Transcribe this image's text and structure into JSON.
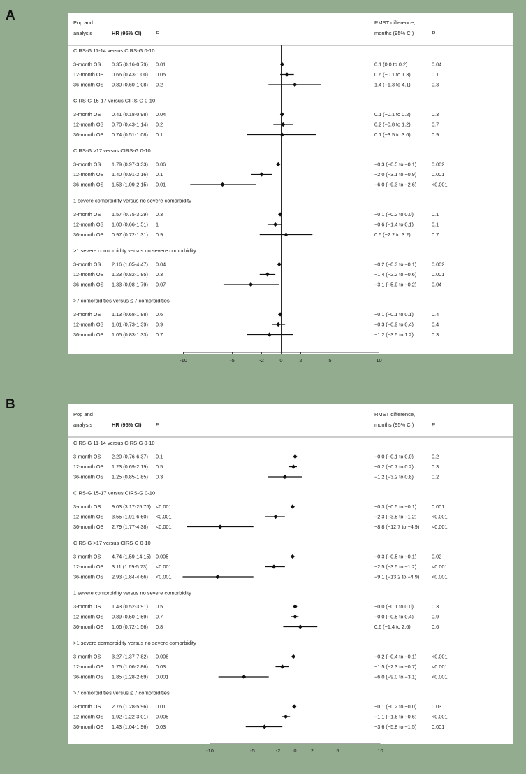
{
  "panels": [
    {
      "letter": "A",
      "header": {
        "pop_line1": "Pop and",
        "pop_line2": "analysis",
        "hr_label": "HR (95% CI)",
        "p_label": "P",
        "rmst_line1": "RMST difference,",
        "rmst_line2": "months (95% CI)",
        "p2_label": "P"
      },
      "groups": [
        {
          "title": "CIRS-G 11-14 versus CIRS-G  0-10",
          "rows": [
            {
              "label": "3-month OS",
              "hr": "0.35 (0.16-0.79)",
              "p": "0.01",
              "est": 0.1,
              "lo": 0.0,
              "hi": 0.2,
              "rmst": "0.1 (0.0 to 0.2)",
              "p2": "0.04"
            },
            {
              "label": "12-month OS",
              "hr": "0.66 (0.43-1.00)",
              "p": "0.05",
              "est": 0.6,
              "lo": -0.1,
              "hi": 1.3,
              "rmst": "0.6 (−0.1 to 1.3)",
              "p2": "0.1"
            },
            {
              "label": "36-month OS",
              "hr": "0.80 (0.60-1.08)",
              "p": "0.2",
              "est": 1.4,
              "lo": -1.3,
              "hi": 4.1,
              "rmst": "1.4 (−1.3 to 4.1)",
              "p2": "0.3"
            }
          ]
        },
        {
          "title": "CIRS-G 15-17 versus CIRS-G  0-10",
          "rows": [
            {
              "label": "3-month OS",
              "hr": "0.41 (0.18-0.98)",
              "p": "0.04",
              "est": 0.1,
              "lo": -0.1,
              "hi": 0.2,
              "rmst": "0.1 (−0.1 to 0.2)",
              "p2": "0.3"
            },
            {
              "label": "12-month OS",
              "hr": "0.70 (0.43-1.14)",
              "p": "0.2",
              "est": 0.2,
              "lo": -0.8,
              "hi": 1.2,
              "rmst": "0.2 (−0.8 to 1.2)",
              "p2": "0.7"
            },
            {
              "label": "36-month OS",
              "hr": "0.74 (0.51-1.08)",
              "p": "0.1",
              "est": 0.1,
              "lo": -3.5,
              "hi": 3.6,
              "rmst": "0.1 (−3.5 to 3.6)",
              "p2": "0.9"
            }
          ]
        },
        {
          "title": "CIRS-G >17 versus CIRS-G  0-10",
          "rows": [
            {
              "label": "3-month OS",
              "hr": "1.79 (0.97-3.33)",
              "p": "0.06",
              "est": -0.3,
              "lo": -0.5,
              "hi": -0.1,
              "rmst": "−0.3 (−0.5 to −0.1)",
              "p2": "0.002"
            },
            {
              "label": "12-month OS",
              "hr": "1.40 (0.91-2.16)",
              "p": "0.1",
              "est": -2.0,
              "lo": -3.1,
              "hi": -0.9,
              "rmst": "−2.0 (−3.1 to −0.9)",
              "p2": "0.001"
            },
            {
              "label": "36-month OS",
              "hr": "1.53 (1.09-2.15)",
              "p": "0.01",
              "est": -6.0,
              "lo": -9.3,
              "hi": -2.6,
              "rmst": "−6.0 (−9.3 to −2.6)",
              "p2": "<0.001"
            }
          ]
        },
        {
          "title": "1 severe comorbidity versus no severe comorbidity",
          "rows": [
            {
              "label": "3-month OS",
              "hr": "1.57 (0.75-3.29)",
              "p": "0.3",
              "est": -0.1,
              "lo": -0.2,
              "hi": 0.0,
              "rmst": "−0.1 (−0.2 to 0.0)",
              "p2": "0.1"
            },
            {
              "label": "12-month OS",
              "hr": "1.00 (0.66-1.51)",
              "p": "1",
              "est": -0.6,
              "lo": -1.4,
              "hi": 0.1,
              "rmst": "−0.6 (−1.4 to 0.1)",
              "p2": "0.1"
            },
            {
              "label": "36-month OS",
              "hr": "0.97 (0.72-1.31)",
              "p": "0.9",
              "est": 0.5,
              "lo": -2.2,
              "hi": 3.2,
              "rmst": "0.5 (−2.2 to 3.2)",
              "p2": "0.7"
            }
          ]
        },
        {
          "title": ">1 severe cormorbidity versus no severe comorbidity",
          "rows": [
            {
              "label": "3-month OS",
              "hr": "2.16 (1.05-4.47)",
              "p": "0.04",
              "est": -0.2,
              "lo": -0.3,
              "hi": -0.1,
              "rmst": "−0.2 (−0.3 to −0.1)",
              "p2": "0.002"
            },
            {
              "label": "12-month OS",
              "hr": "1.23 (0.82-1.85)",
              "p": "0.3",
              "est": -1.4,
              "lo": -2.2,
              "hi": -0.6,
              "rmst": "−1.4 (−2.2 to −0.6)",
              "p2": "0.001"
            },
            {
              "label": "36-month OS",
              "hr": "1.33 (0.98-1.79)",
              "p": "0.07",
              "est": -3.1,
              "lo": -5.9,
              "hi": -0.2,
              "rmst": "−3.1 (−5.9 to −0.2)",
              "p2": "0.04"
            }
          ]
        },
        {
          "title": ">7 comorbidities versus ≤ 7 comorbidities",
          "rows": [
            {
              "label": "3-month OS",
              "hr": "1.13 (0.68-1.88)",
              "p": "0.6",
              "est": -0.1,
              "lo": -0.1,
              "hi": 0.1,
              "rmst": "−0.1 (−0.1 to 0.1)",
              "p2": "0.4"
            },
            {
              "label": "12-month OS",
              "hr": "1.01 (0.73-1.39)",
              "p": "0.9",
              "est": -0.3,
              "lo": -0.9,
              "hi": 0.4,
              "rmst": "−0.3 (−0.9 to 0.4)",
              "p2": "0.4"
            },
            {
              "label": "36-month OS",
              "hr": "1.05 (0.83-1.33)",
              "p": "0.7",
              "est": -1.2,
              "lo": -3.5,
              "hi": 1.2,
              "rmst": "−1.2 (−3.5 to 1.2)",
              "p2": "0.3"
            }
          ]
        }
      ],
      "x_ticks": [
        -10,
        -5,
        -2,
        0,
        2,
        5,
        10
      ],
      "x_tick_labels": [
        "-10",
        "-5",
        "-2",
        "0",
        "2",
        "5",
        "10"
      ]
    },
    {
      "letter": "B",
      "header": {
        "pop_line1": "Pop and",
        "pop_line2": "analysis",
        "hr_label": "HR (95% CI)",
        "p_label": "P",
        "rmst_line1": "RMST difference,",
        "rmst_line2": "months (95% CI)",
        "p2_label": "P"
      },
      "groups": [
        {
          "title": "CIRS-G 11-14 versus CIRS-G  0-10",
          "rows": [
            {
              "label": "3-month OS",
              "hr": "2.20 (0.76-6.37)",
              "p": "0.1",
              "est": -0.0,
              "lo": -0.1,
              "hi": 0.0,
              "rmst": "−0.0 (−0.1 to 0.0)",
              "p2": "0.2"
            },
            {
              "label": "12-month OS",
              "hr": "1.23 (0.69-2.19)",
              "p": "0.5",
              "est": -0.2,
              "lo": -0.7,
              "hi": 0.2,
              "rmst": "−0.2 (−0.7 to 0.2)",
              "p2": "0.3"
            },
            {
              "label": "36-month OS",
              "hr": "1.25 (0.85-1.85)",
              "p": "0.3",
              "est": -1.2,
              "lo": -3.2,
              "hi": 0.8,
              "rmst": "−1.2 (−3.2 to 0.8)",
              "p2": "0.2"
            }
          ]
        },
        {
          "title": "CIRS-G 15-17 versus CIRS-G  0-10",
          "rows": [
            {
              "label": "3-month OS",
              "hr": "9.03 (3.17-25.76)",
              "p": "<0.001",
              "est": -0.3,
              "lo": -0.5,
              "hi": -0.1,
              "rmst": "−0.3 (−0.5 to −0.1)",
              "p2": "0.001"
            },
            {
              "label": "12-month OS",
              "hr": "3.55 (1.91-6.60)",
              "p": "<0.001",
              "est": -2.3,
              "lo": -3.5,
              "hi": -1.2,
              "rmst": "−2.3 (−3.5 to −1.2)",
              "p2": "<0.001"
            },
            {
              "label": "36-month OS",
              "hr": "2.79 (1.77-4.38)",
              "p": "<0.001",
              "est": -8.8,
              "lo": -12.7,
              "hi": -4.9,
              "rmst": "−8.8 (−12.7 to −4.9)",
              "p2": "<0.001"
            }
          ]
        },
        {
          "title": "CIRS-G >17 versus CIRS-G  0-10",
          "rows": [
            {
              "label": "3-month OS",
              "hr": "4.74 (1.59-14.15)",
              "p": "0.005",
              "est": -0.3,
              "lo": -0.5,
              "hi": -0.1,
              "rmst": "−0.3 (−0.5 to −0.1)",
              "p2": "0.02"
            },
            {
              "label": "12-month OS",
              "hr": "3.11 (1.69-5.73)",
              "p": "<0.001",
              "est": -2.5,
              "lo": -3.5,
              "hi": -1.2,
              "rmst": "−2.5 (−3.5 to −1.2)",
              "p2": "<0.001"
            },
            {
              "label": "36-month OS",
              "hr": "2.93 (1.84-4.66)",
              "p": "<0.001",
              "est": -9.1,
              "lo": -13.2,
              "hi": -4.9,
              "rmst": "−9.1 (−13.2 to −4.9)",
              "p2": "<0.001"
            }
          ]
        },
        {
          "title": "1 severe comorbidity versus no severe comorbidity",
          "rows": [
            {
              "label": "3-month OS",
              "hr": "1.43 (0.52-3.91)",
              "p": "0.5",
              "est": -0.0,
              "lo": -0.1,
              "hi": 0.0,
              "rmst": "−0.0 (−0.1 to 0.0)",
              "p2": "0.3"
            },
            {
              "label": "12-month OS",
              "hr": "0.89 (0.50-1.59)",
              "p": "0.7",
              "est": -0.0,
              "lo": -0.5,
              "hi": 0.4,
              "rmst": "−0.0 (−0.5 to 0.4)",
              "p2": "0.9"
            },
            {
              "label": "36-month OS",
              "hr": "1.06 (0.72-1.56)",
              "p": "0.8",
              "est": 0.6,
              "lo": -1.4,
              "hi": 2.6,
              "rmst": "0.6 (−1.4 to 2.6)",
              "p2": "0.6"
            }
          ]
        },
        {
          "title": ">1 severe cormorbidity versus no severe comorbidity",
          "rows": [
            {
              "label": "3-month OS",
              "hr": "3.27 (1.37-7.82)",
              "p": "0.008",
              "est": -0.2,
              "lo": -0.4,
              "hi": -0.1,
              "rmst": "−0.2 (−0.4 to −0.1)",
              "p2": "<0.001"
            },
            {
              "label": "12-month OS",
              "hr": "1.75 (1.06-2.86)",
              "p": "0.03",
              "est": -1.5,
              "lo": -2.3,
              "hi": -0.7,
              "rmst": "−1.5 (−2.3 to −0.7)",
              "p2": "<0.001"
            },
            {
              "label": "36-month OS",
              "hr": "1.85 (1.28-2.69)",
              "p": "0.001",
              "est": -6.0,
              "lo": -9.0,
              "hi": -3.1,
              "rmst": "−6.0 (−9.0 to −3.1)",
              "p2": "<0.001"
            }
          ]
        },
        {
          "title": ">7 comorbidities versus ≤ 7 comorbidities",
          "rows": [
            {
              "label": "3-month OS",
              "hr": "2.76 (1.28-5.96)",
              "p": "0.01",
              "est": -0.1,
              "lo": -0.2,
              "hi": -0.0,
              "rmst": "−0.1 (−0.2 to −0.0)",
              "p2": "0.03"
            },
            {
              "label": "12-month OS",
              "hr": "1.92 (1.22-3.01)",
              "p": "0.005",
              "est": -1.1,
              "lo": -1.6,
              "hi": -0.6,
              "rmst": "−1.1 (−1.6 to −0.6)",
              "p2": "<0.001"
            },
            {
              "label": "36-month OS",
              "hr": "1.43 (1.04-1.96)",
              "p": "0.03",
              "est": -3.6,
              "lo": -5.8,
              "hi": -1.5,
              "rmst": "−3.6 (−5.8 to −1.5)",
              "p2": "0.001"
            }
          ]
        }
      ],
      "x_ticks": [
        -10,
        -5,
        -2,
        0,
        2,
        5,
        10
      ],
      "x_tick_labels": [
        "-10",
        "-5",
        "-2",
        "0",
        "2",
        "5",
        "10"
      ]
    }
  ],
  "chart_data": [
    {
      "type": "forest",
      "panel": "A",
      "x_axis_ticks": [
        -10,
        -5,
        -2,
        0,
        2,
        5,
        10
      ],
      "reference_line": 0,
      "series": [
        {
          "group": "CIRS-G 11-14 versus CIRS-G  0-10",
          "labels": [
            "3-month OS",
            "12-month OS",
            "36-month OS"
          ],
          "estimate": [
            0.1,
            0.6,
            1.4
          ],
          "lower": [
            0.0,
            -0.1,
            -1.3
          ],
          "upper": [
            0.2,
            1.3,
            4.1
          ]
        },
        {
          "group": "CIRS-G 15-17 versus CIRS-G  0-10",
          "labels": [
            "3-month OS",
            "12-month OS",
            "36-month OS"
          ],
          "estimate": [
            0.1,
            0.2,
            0.1
          ],
          "lower": [
            -0.1,
            -0.8,
            -3.5
          ],
          "upper": [
            0.2,
            1.2,
            3.6
          ]
        },
        {
          "group": "CIRS-G >17 versus CIRS-G  0-10",
          "labels": [
            "3-month OS",
            "12-month OS",
            "36-month OS"
          ],
          "estimate": [
            -0.3,
            -2.0,
            -6.0
          ],
          "lower": [
            -0.5,
            -3.1,
            -9.3
          ],
          "upper": [
            -0.1,
            -0.9,
            -2.6
          ]
        },
        {
          "group": "1 severe comorbidity versus no severe comorbidity",
          "labels": [
            "3-month OS",
            "12-month OS",
            "36-month OS"
          ],
          "estimate": [
            -0.1,
            -0.6,
            0.5
          ],
          "lower": [
            -0.2,
            -1.4,
            -2.2
          ],
          "upper": [
            0.0,
            0.1,
            3.2
          ]
        },
        {
          "group": ">1 severe cormorbidity versus no severe comorbidity",
          "labels": [
            "3-month OS",
            "12-month OS",
            "36-month OS"
          ],
          "estimate": [
            -0.2,
            -1.4,
            -3.1
          ],
          "lower": [
            -0.3,
            -2.2,
            -5.9
          ],
          "upper": [
            -0.1,
            -0.6,
            -0.2
          ]
        },
        {
          "group": ">7 comorbidities versus ≤ 7 comorbidities",
          "labels": [
            "3-month OS",
            "12-month OS",
            "36-month OS"
          ],
          "estimate": [
            -0.1,
            -0.3,
            -1.2
          ],
          "lower": [
            -0.1,
            -0.9,
            -3.5
          ],
          "upper": [
            0.1,
            0.4,
            1.2
          ]
        }
      ]
    },
    {
      "type": "forest",
      "panel": "B",
      "x_axis_ticks": [
        -10,
        -5,
        -2,
        0,
        2,
        5,
        10
      ],
      "reference_line": 0,
      "series": [
        {
          "group": "CIRS-G 11-14 versus CIRS-G  0-10",
          "labels": [
            "3-month OS",
            "12-month OS",
            "36-month OS"
          ],
          "estimate": [
            -0.0,
            -0.2,
            -1.2
          ],
          "lower": [
            -0.1,
            -0.7,
            -3.2
          ],
          "upper": [
            0.0,
            0.2,
            0.8
          ]
        },
        {
          "group": "CIRS-G 15-17 versus CIRS-G  0-10",
          "labels": [
            "3-month OS",
            "12-month OS",
            "36-month OS"
          ],
          "estimate": [
            -0.3,
            -2.3,
            -8.8
          ],
          "lower": [
            -0.5,
            -3.5,
            -12.7
          ],
          "upper": [
            -0.1,
            -1.2,
            -4.9
          ]
        },
        {
          "group": "CIRS-G >17 versus CIRS-G  0-10",
          "labels": [
            "3-month OS",
            "12-month OS",
            "36-month OS"
          ],
          "estimate": [
            -0.3,
            -2.5,
            -9.1
          ],
          "lower": [
            -0.5,
            -3.5,
            -13.2
          ],
          "upper": [
            -0.1,
            -1.2,
            -4.9
          ]
        },
        {
          "group": "1 severe comorbidity versus no severe comorbidity",
          "labels": [
            "3-month OS",
            "12-month OS",
            "36-month OS"
          ],
          "estimate": [
            -0.0,
            -0.0,
            0.6
          ],
          "lower": [
            -0.1,
            -0.5,
            -1.4
          ],
          "upper": [
            0.0,
            0.4,
            2.6
          ]
        },
        {
          "group": ">1 severe cormorbidity versus no severe comorbidity",
          "labels": [
            "3-month OS",
            "12-month OS",
            "36-month OS"
          ],
          "estimate": [
            -0.2,
            -1.5,
            -6.0
          ],
          "lower": [
            -0.4,
            -2.3,
            -9.0
          ],
          "upper": [
            -0.1,
            -0.7,
            -3.1
          ]
        },
        {
          "group": ">7 comorbidities versus ≤ 7 comorbidities",
          "labels": [
            "3-month OS",
            "12-month OS",
            "36-month OS"
          ],
          "estimate": [
            -0.1,
            -1.1,
            -3.6
          ],
          "lower": [
            -0.2,
            -1.6,
            -5.8
          ],
          "upper": [
            -0.0,
            -0.6,
            -1.5
          ]
        }
      ]
    }
  ],
  "colors": {
    "background": "#93ab8f",
    "plot_background": "#ffffff",
    "marks": "#111111"
  }
}
